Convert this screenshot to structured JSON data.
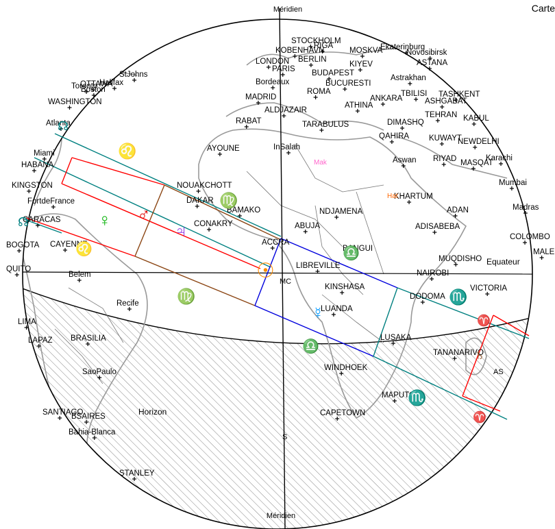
{
  "header": {
    "title": "Carte"
  },
  "labels": {
    "meridian_top": "Méridien",
    "meridian_bottom": "Méridien",
    "horizon": "Horizon",
    "equator": "Equateur",
    "south": "S",
    "mc": "MC",
    "as": "AS",
    "mak": "Mak",
    "hat": "Hat"
  },
  "cities": [
    {
      "name": "STOCKHOLM"
    },
    {
      "name": "RIGA"
    },
    {
      "name": "KOBENHAVN"
    },
    {
      "name": "MOSKVA"
    },
    {
      "name": "Ekaterinburg"
    },
    {
      "name": "Novosibirsk"
    },
    {
      "name": "LONDON"
    },
    {
      "name": "BERLIN"
    },
    {
      "name": "KIYEV"
    },
    {
      "name": "ASTANA"
    },
    {
      "name": "PARIS"
    },
    {
      "name": "BUDAPEST"
    },
    {
      "name": "Astrakhan"
    },
    {
      "name": "Bordeaux"
    },
    {
      "name": "BUCURESTI"
    },
    {
      "name": "ROMA"
    },
    {
      "name": "TBILISI"
    },
    {
      "name": "TASHKENT"
    },
    {
      "name": "MADRID"
    },
    {
      "name": "ANKARA"
    },
    {
      "name": "ASHGABAT"
    },
    {
      "name": "ATHINA"
    },
    {
      "name": "ALDJAZAIR"
    },
    {
      "name": "TEHRAN"
    },
    {
      "name": "KABUL"
    },
    {
      "name": "RABAT"
    },
    {
      "name": "TARABULUS"
    },
    {
      "name": "DIMASHQ"
    },
    {
      "name": "QAHIRA"
    },
    {
      "name": "KUWAYT"
    },
    {
      "name": "NEWDELHI"
    },
    {
      "name": "AYOUNE"
    },
    {
      "name": "InSalah"
    },
    {
      "name": "Aswan"
    },
    {
      "name": "RIYAD"
    },
    {
      "name": "MASQAT"
    },
    {
      "name": "Karachi"
    },
    {
      "name": "Mumbai"
    },
    {
      "name": "NOUAKCHOTT"
    },
    {
      "name": "DAKAR"
    },
    {
      "name": "BAMAKO"
    },
    {
      "name": "KHARTUM"
    },
    {
      "name": "ADAN"
    },
    {
      "name": "Madras"
    },
    {
      "name": "CONAKRY"
    },
    {
      "name": "NDJAMENA"
    },
    {
      "name": "ADISABEBA"
    },
    {
      "name": "COLOMBO"
    },
    {
      "name": "ACCRA"
    },
    {
      "name": "ABUJA"
    },
    {
      "name": "BANGUI"
    },
    {
      "name": "MUQDISHO"
    },
    {
      "name": "MALE"
    },
    {
      "name": "LIBREVILLE"
    },
    {
      "name": "NAIROBI"
    },
    {
      "name": "KINSHASA"
    },
    {
      "name": "VICTORIA"
    },
    {
      "name": "DODOMA"
    },
    {
      "name": "LUANDA"
    },
    {
      "name": "LUSAKA"
    },
    {
      "name": "TANANARIVO"
    },
    {
      "name": "WINDHOEK"
    },
    {
      "name": "MAPUTO"
    },
    {
      "name": "CAPETOWN"
    },
    {
      "name": "OTTAWA"
    },
    {
      "name": "StJohns"
    },
    {
      "name": "Toronto"
    },
    {
      "name": "Halifax"
    },
    {
      "name": "Boston"
    },
    {
      "name": "WASHINGTON"
    },
    {
      "name": "Atlanta"
    },
    {
      "name": "Miami"
    },
    {
      "name": "HABANA"
    },
    {
      "name": "KINGSTON"
    },
    {
      "name": "FortdeFrance"
    },
    {
      "name": "CARACAS"
    },
    {
      "name": "BOGOTA"
    },
    {
      "name": "CAYENNE"
    },
    {
      "name": "QUITO"
    },
    {
      "name": "Belem"
    },
    {
      "name": "Recife"
    },
    {
      "name": "LIMA"
    },
    {
      "name": "LAPAZ"
    },
    {
      "name": "BRASILIA"
    },
    {
      "name": "SaoPaulo"
    },
    {
      "name": "SANTIAGO"
    },
    {
      "name": "BSAIRES"
    },
    {
      "name": "Bahia-Blanca"
    },
    {
      "name": "STANLEY"
    }
  ],
  "symbols": {
    "leo": "♌",
    "venus": "♀",
    "mars": "♂",
    "jupiter": "♃",
    "virgo": "♍",
    "virgo2": "♍",
    "libra": "♎",
    "libra2": "♎",
    "scorpio": "♏",
    "scorpio2": "♏",
    "mercury": "☿",
    "sun": "☉",
    "saturn": "♄",
    "leo2": "♌",
    "node": "☊",
    "aries": "♈"
  },
  "colors": {
    "ecliptic_leo": "#ff0000",
    "ecliptic_virgo": "#8b4513",
    "ecliptic_libra": "#0000dd",
    "ecliptic_scorpio": "#008080",
    "sun": "#ff8c00",
    "venus": "#00b000",
    "jupiter": "#8a2be2",
    "mak": "#ff66cc",
    "hat": "#ff6600"
  }
}
